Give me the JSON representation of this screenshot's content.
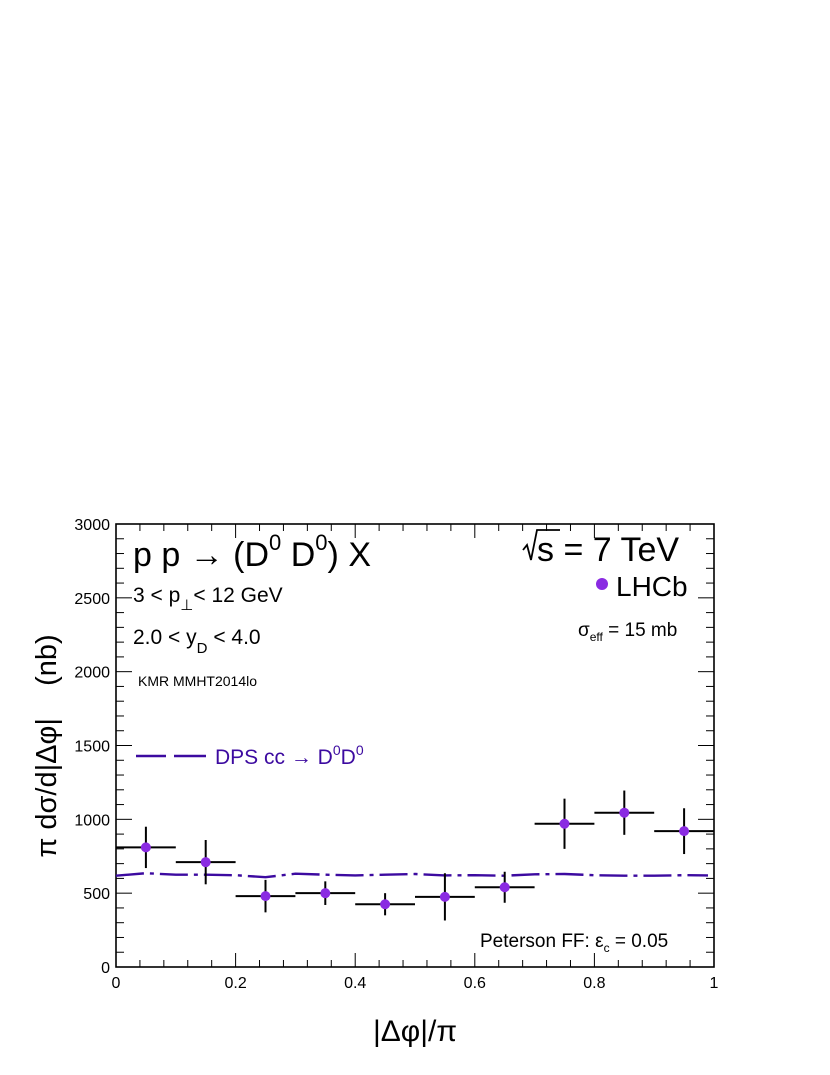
{
  "chart_data": {
    "type": "scatter",
    "title": "",
    "xlabel": "|Δφ|/π",
    "ylabel": "π dσ/d|Δφ|    (nb)",
    "xlim": [
      0,
      1
    ],
    "ylim": [
      0,
      3000
    ],
    "x_ticks": [
      "0",
      "0.2",
      "0.4",
      "0.6",
      "0.8",
      "1"
    ],
    "y_ticks": [
      "0",
      "500",
      "1000",
      "1500",
      "2000",
      "2500",
      "3000"
    ],
    "grid": false,
    "annotations": {
      "process_main": "p p → (D",
      "process_sup1": "0",
      "process_mid": " D",
      "process_sup2": "0",
      "process_end": ") X",
      "energy": "s = 7 TeV",
      "pt_left": "3 < p",
      "pt_sub": "⊥",
      "pt_right": "< 12 GeV",
      "y_left": "2.0 < y",
      "y_sub": "D",
      "y_right": " < 4.0",
      "model": "KMR MMHT2014lo",
      "sigma_main": "σ",
      "sigma_sub": "eff",
      "sigma_right": " = 15 mb",
      "ff_left": "Peterson FF: ε",
      "ff_sub": "c",
      "ff_right": " = 0.05"
    },
    "legend": {
      "data_label": "LHCb",
      "dps_label_main": "DPS cc → D",
      "dps_sup1": "0",
      "dps_mid": "D",
      "dps_sup2": "0"
    },
    "colors": {
      "data_point": "#8a2be2",
      "dps_line": "#3c0aa0",
      "dps_text": "#3c0aa0"
    },
    "series": [
      {
        "name": "LHCb",
        "kind": "points",
        "x": [
          0.05,
          0.15,
          0.25,
          0.35,
          0.45,
          0.55,
          0.65,
          0.75,
          0.85,
          0.95
        ],
        "xerr": [
          0.05,
          0.05,
          0.05,
          0.05,
          0.05,
          0.05,
          0.05,
          0.05,
          0.05,
          0.05
        ],
        "y": [
          810,
          710,
          480,
          500,
          425,
          475,
          540,
          970,
          1045,
          920
        ],
        "yerr": [
          140,
          150,
          110,
          80,
          75,
          160,
          105,
          170,
          150,
          155
        ]
      },
      {
        "name": "DPS cc → D0D0",
        "kind": "dashed-line",
        "x": [
          0.0,
          0.05,
          0.1,
          0.15,
          0.2,
          0.25,
          0.3,
          0.35,
          0.4,
          0.45,
          0.5,
          0.55,
          0.6,
          0.65,
          0.7,
          0.75,
          0.8,
          0.85,
          0.9,
          0.95,
          0.99
        ],
        "y": [
          618,
          635,
          625,
          625,
          622,
          608,
          632,
          625,
          620,
          625,
          630,
          620,
          622,
          618,
          628,
          630,
          622,
          618,
          618,
          622,
          620
        ]
      }
    ]
  }
}
